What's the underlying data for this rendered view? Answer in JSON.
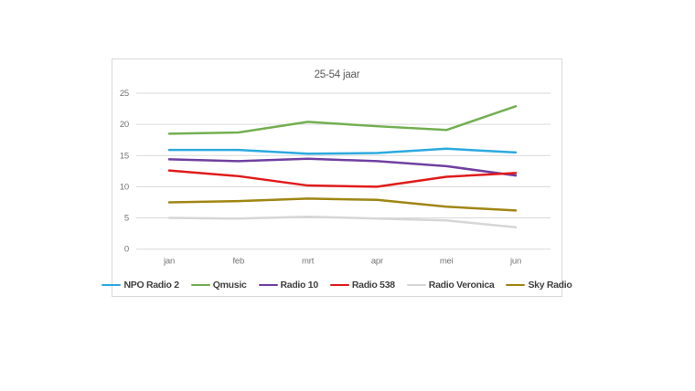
{
  "page": {
    "background": "#ffffff"
  },
  "chart_data": {
    "type": "line",
    "title": "25-54 jaar",
    "categories": [
      "jan",
      "feb",
      "mrt",
      "apr",
      "mei",
      "jun"
    ],
    "series": [
      {
        "name": "NPO Radio 2",
        "color": "#2BAADF",
        "values": [
          15.9,
          15.9,
          15.3,
          15.4,
          16.1,
          15.5
        ]
      },
      {
        "name": "Qmusic",
        "color": "#73AF51",
        "values": [
          18.5,
          18.7,
          20.4,
          19.7,
          19.1,
          22.9
        ]
      },
      {
        "name": "Radio 10",
        "color": "#7040A0",
        "values": [
          14.4,
          14.1,
          14.5,
          14.1,
          13.3,
          11.8
        ]
      },
      {
        "name": "Radio 538",
        "color": "#E01B1B",
        "values": [
          12.6,
          11.7,
          10.2,
          10.0,
          11.6,
          12.2
        ]
      },
      {
        "name": "Radio Veronica",
        "color": "#D6D6D6",
        "values": [
          5.0,
          4.9,
          5.2,
          4.9,
          4.6,
          3.5
        ]
      },
      {
        "name": "Sky Radio",
        "color": "#A08613",
        "values": [
          7.5,
          7.7,
          8.1,
          7.9,
          6.8,
          6.2
        ]
      }
    ],
    "ylim": [
      0,
      25
    ],
    "yticks": [
      0,
      5,
      10,
      15,
      20,
      25
    ],
    "grid": "horizontal",
    "legend_position": "bottom"
  },
  "colors": {
    "gridline": "#d9d9d9",
    "card_border": "#d9d9d9",
    "title_text": "#595959",
    "axis_text": "#737373",
    "legend_text": "#404040"
  }
}
